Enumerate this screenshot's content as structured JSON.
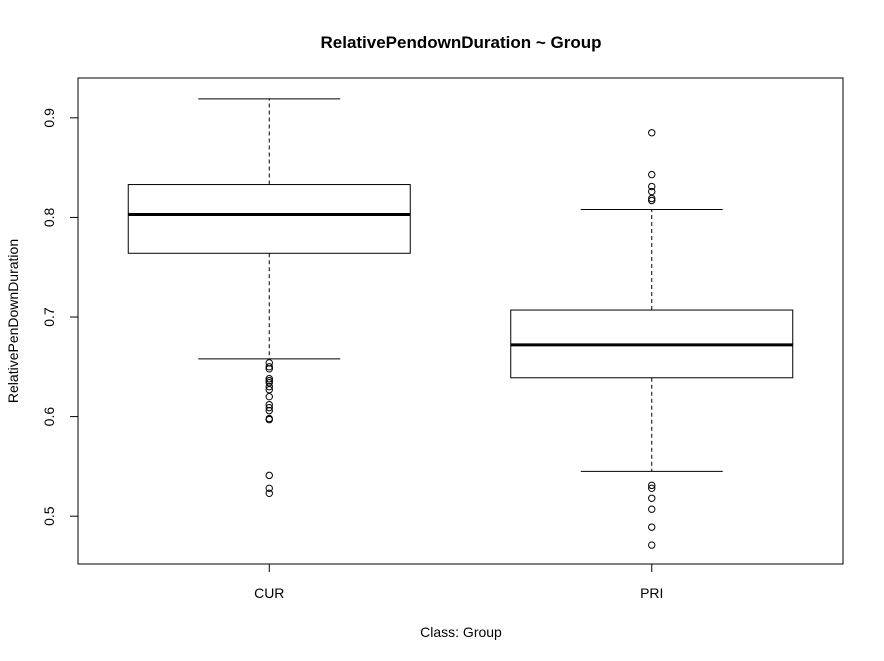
{
  "chart_data": {
    "type": "boxplot",
    "title": "RelativePendownDuration ~ Group",
    "xlabel": "Class: Group",
    "ylabel": "RelativePenDownDuration",
    "ylim": [
      0.452,
      0.94
    ],
    "yticks": [
      "0.5",
      "0.6",
      "0.7",
      "0.8",
      "0.9"
    ],
    "categories": [
      "CUR",
      "PRI"
    ],
    "boxes": [
      {
        "name": "CUR",
        "whisker_low": 0.658,
        "q1": 0.764,
        "median": 0.803,
        "q3": 0.833,
        "whisker_high": 0.919,
        "outliers": [
          0.654,
          0.65,
          0.648,
          0.638,
          0.636,
          0.634,
          0.63,
          0.627,
          0.62,
          0.612,
          0.609,
          0.606,
          0.598,
          0.597,
          0.541,
          0.528,
          0.523
        ]
      },
      {
        "name": "PRI",
        "whisker_low": 0.545,
        "q1": 0.639,
        "median": 0.672,
        "q3": 0.707,
        "whisker_high": 0.808,
        "outliers": [
          0.885,
          0.843,
          0.831,
          0.826,
          0.819,
          0.817,
          0.531,
          0.528,
          0.518,
          0.507,
          0.489,
          0.471
        ]
      }
    ],
    "grid": false,
    "legend": "none"
  }
}
